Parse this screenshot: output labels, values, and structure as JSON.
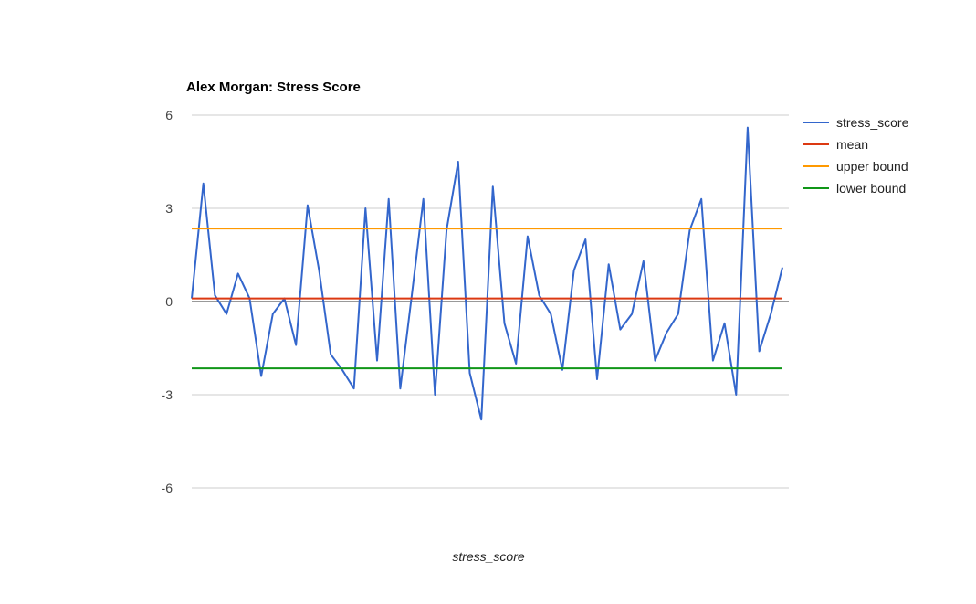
{
  "chart_data": {
    "type": "line",
    "title": "Alex Morgan: Stress Score",
    "xlabel": "stress_score",
    "ylabel": "",
    "ylim": [
      -6,
      6
    ],
    "yticks": [
      "6",
      "3",
      "0",
      "-3",
      "-6"
    ],
    "grid": true,
    "legend_position": "right",
    "series": [
      {
        "name": "stress_score",
        "color": "#3366cc",
        "values": [
          0.1,
          3.8,
          0.2,
          -0.4,
          0.9,
          0.1,
          -2.4,
          -0.4,
          0.1,
          -1.4,
          3.1,
          1.0,
          -1.7,
          -2.2,
          -2.8,
          3.0,
          -1.9,
          3.3,
          -2.8,
          0.2,
          3.3,
          -3.0,
          2.3,
          4.5,
          -2.3,
          -3.8,
          3.7,
          -0.7,
          -2.0,
          2.1,
          0.2,
          -0.4,
          -2.2,
          1.0,
          2.0,
          -2.5,
          1.2,
          -0.9,
          -0.4,
          1.3,
          -1.9,
          -1.0,
          -0.4,
          2.3,
          3.3,
          -1.9,
          -0.7,
          -3.0,
          5.6,
          -1.6,
          -0.4,
          1.1
        ]
      },
      {
        "name": "mean",
        "color": "#dc3912",
        "constant": 0.1
      },
      {
        "name": "upper bound",
        "color": "#ff9900",
        "constant": 2.35
      },
      {
        "name": "lower bound",
        "color": "#109618",
        "constant": -2.15
      }
    ]
  }
}
